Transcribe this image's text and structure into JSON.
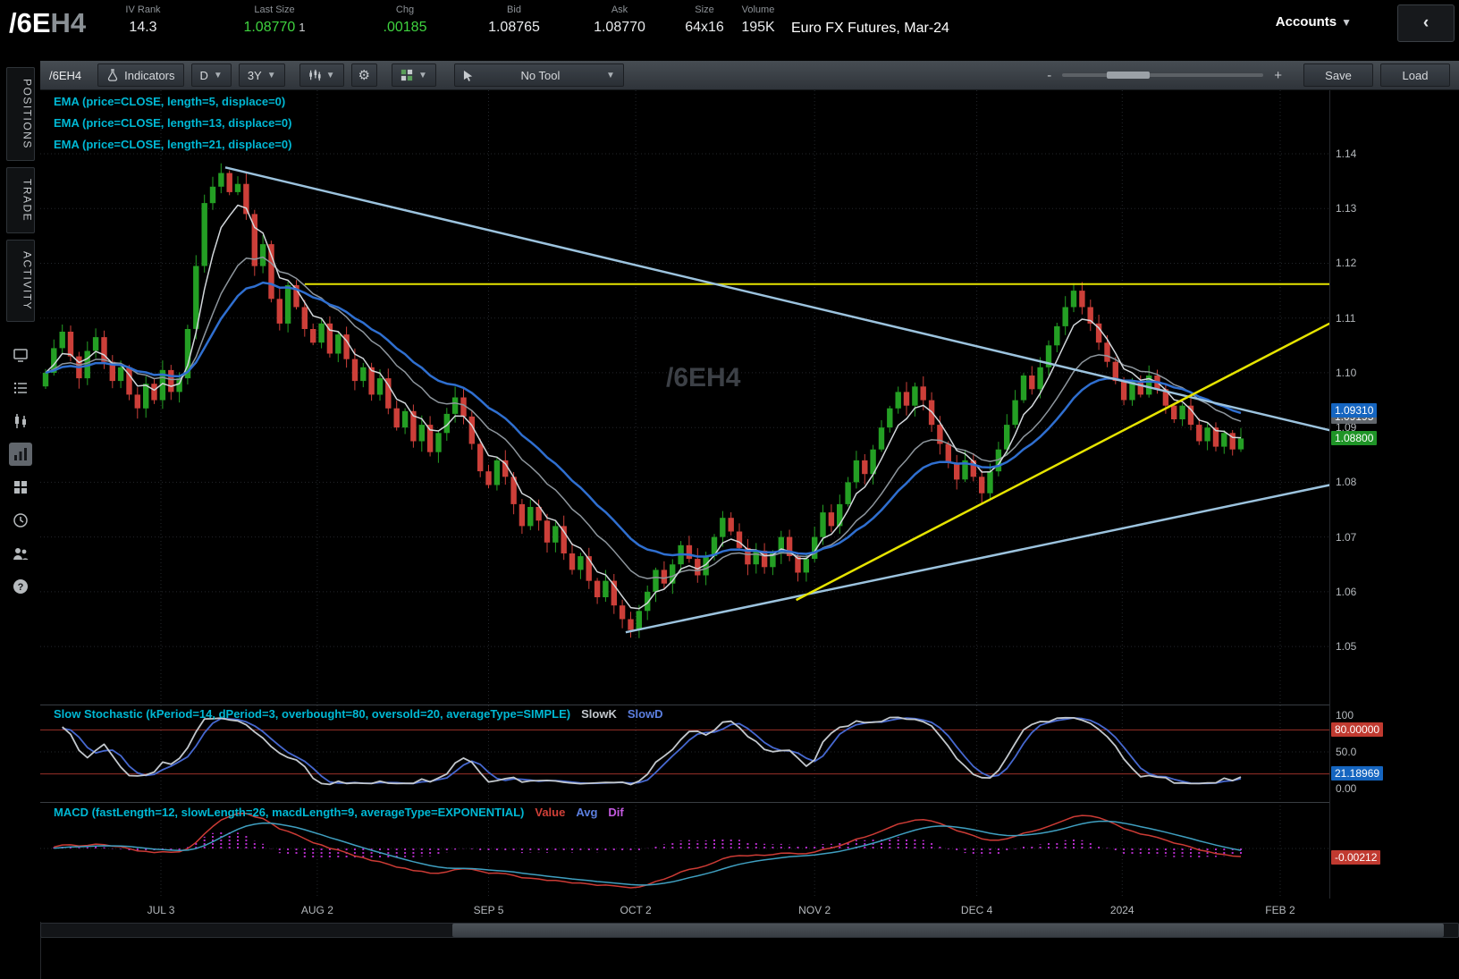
{
  "header": {
    "symbol": "/6E",
    "symbol_suffix": "H4",
    "fields": [
      {
        "label": "IV Rank",
        "value": "14.3",
        "color": "#e8eaec"
      },
      {
        "label": "Last Size",
        "value": "1.08770",
        "qty": "1",
        "color": "#3fd33f"
      },
      {
        "label": "Chg",
        "value": ".00185",
        "color": "#3fd33f"
      },
      {
        "label": "Bid",
        "value": "1.08765",
        "color": "#e8eaec"
      },
      {
        "label": "Ask",
        "value": "1.08770",
        "color": "#e8eaec"
      },
      {
        "label": "Size",
        "value": "64x16",
        "color": "#e8eaec"
      },
      {
        "label": "Volume",
        "value": "195K",
        "color": "#e8eaec"
      }
    ],
    "description": "Euro FX Futures, Mar-24",
    "accounts_label": "Accounts"
  },
  "sidebar": {
    "tabs": [
      {
        "label": "POSITIONS"
      },
      {
        "label": "TRADE"
      },
      {
        "label": "ACTIVITY"
      }
    ],
    "icons": [
      "monitor-icon",
      "watchlist-icon",
      "candles-icon",
      "chart-icon",
      "grid-icon",
      "history-icon",
      "community-icon",
      "help-icon"
    ]
  },
  "toolbar": {
    "symbol": "/6EH4",
    "indicators": "Indicators",
    "timeframe": "D",
    "range": "3Y",
    "tool": "No Tool",
    "zoom_out": "-",
    "zoom_in": "+",
    "save": "Save",
    "load": "Load"
  },
  "studies": {
    "ema_labels": [
      "EMA (price=CLOSE, length=5, displace=0)",
      "EMA (price=CLOSE, length=13, displace=0)",
      "EMA (price=CLOSE, length=21, displace=0)"
    ],
    "stoch_label": "Slow Stochastic (kPeriod=14, dPeriod=3, overbought=80, oversold=20, averageType=SIMPLE)",
    "stoch_legend": [
      {
        "text": "SlowK",
        "color": "#c3c8cd"
      },
      {
        "text": "SlowD",
        "color": "#5c7fe0"
      }
    ],
    "macd_label": "MACD (fastLength=12, slowLength=26, macdLength=9, averageType=EXPONENTIAL)",
    "macd_legend": [
      {
        "text": "Value",
        "color": "#d04038"
      },
      {
        "text": "Avg",
        "color": "#5c7fe0"
      },
      {
        "text": "Dif",
        "color": "#c45ae0"
      }
    ]
  },
  "watermark": "/6EH4",
  "axis": {
    "price_ticks": [
      "1.14",
      "1.13",
      "1.12",
      "1.11",
      "1.10",
      "1.09",
      "1.08",
      "1.07",
      "1.06",
      "1.05"
    ],
    "price_bubbles": [
      {
        "value": "1.09195",
        "bg": "#61666b"
      },
      {
        "value": "1.09310",
        "bg": "#1565c0"
      },
      {
        "value": "1.08800",
        "bg": "#1f9427"
      }
    ],
    "stoch_ticks": [
      {
        "text": "100",
        "v": 100
      },
      {
        "text": "50.0",
        "v": 50
      },
      {
        "text": "0.00",
        "v": 0
      }
    ],
    "stoch_bubbles": [
      {
        "value": "80.00000",
        "v": 80,
        "bg": "#c03a30"
      },
      {
        "value": "21.18969",
        "v": 21.18969,
        "bg": "#1565c0"
      }
    ],
    "macd_bubbles": [
      {
        "value": "-0.00212",
        "v": -0.00212,
        "bg": "#c03a30"
      }
    ]
  },
  "chart_data": {
    "type": "candlestick",
    "title": "/6EH4  Euro FX Futures, Mar-24",
    "timeframe": "D",
    "range": "3Y",
    "ylim": [
      1.0394,
      1.1516
    ],
    "price_grid": [
      1.05,
      1.06,
      1.07,
      1.08,
      1.09,
      1.1,
      1.11,
      1.12,
      1.13,
      1.14
    ],
    "x_ticks": [
      {
        "label": "JUL 3",
        "i": 13.8
      },
      {
        "label": "AUG 2",
        "i": 32.5
      },
      {
        "label": "SEP 5",
        "i": 53
      },
      {
        "label": "OCT 2",
        "i": 70.6
      },
      {
        "label": "NOV 2",
        "i": 92
      },
      {
        "label": "DEC 4",
        "i": 111.4
      },
      {
        "label": "2024",
        "i": 128.8
      },
      {
        "label": "FEB 2",
        "i": 147.7
      }
    ],
    "first_open": 1.0975,
    "closes": [
      1.1,
      1.1045,
      1.1075,
      1.103,
      1.099,
      1.104,
      1.1065,
      1.102,
      1.0985,
      1.101,
      1.096,
      1.0935,
      1.098,
      1.095,
      1.1005,
      1.0965,
      1.099,
      1.108,
      1.1195,
      1.131,
      1.134,
      1.1365,
      1.133,
      1.1345,
      1.129,
      1.1195,
      1.1235,
      1.1135,
      1.109,
      1.116,
      1.112,
      1.108,
      1.1055,
      1.109,
      1.1035,
      1.107,
      1.1025,
      1.0985,
      1.101,
      1.096,
      1.099,
      1.0935,
      1.09,
      1.093,
      1.0875,
      1.0905,
      1.0855,
      1.089,
      1.0925,
      1.0955,
      1.092,
      1.087,
      1.082,
      1.0795,
      1.084,
      1.081,
      1.076,
      1.072,
      1.0755,
      1.073,
      1.069,
      1.072,
      1.067,
      1.064,
      1.0665,
      1.062,
      1.059,
      1.062,
      1.0575,
      1.055,
      1.053,
      1.0565,
      1.06,
      1.064,
      1.0615,
      1.065,
      1.0685,
      1.066,
      1.063,
      1.0665,
      1.07,
      1.0735,
      1.071,
      1.068,
      1.065,
      1.0675,
      1.0645,
      1.067,
      1.07,
      1.0665,
      1.0635,
      1.066,
      1.07,
      1.0745,
      1.072,
      1.076,
      1.08,
      1.084,
      1.0815,
      1.086,
      1.09,
      1.0935,
      1.0965,
      1.094,
      1.0975,
      1.095,
      1.0905,
      1.087,
      1.0835,
      1.0805,
      1.084,
      1.081,
      1.078,
      1.082,
      1.086,
      1.0905,
      1.095,
      1.0995,
      1.097,
      1.101,
      1.105,
      1.1085,
      1.112,
      1.115,
      1.112,
      1.109,
      1.1055,
      1.102,
      1.0985,
      1.095,
      1.0985,
      1.096,
      1.0995,
      1.097,
      1.094,
      1.0915,
      1.094,
      1.0905,
      1.0875,
      1.09,
      1.0865,
      1.089,
      1.086,
      1.088
    ],
    "colors": {
      "up": "#249f24",
      "down": "#cc3f39",
      "ema5": "#d2d7db",
      "ema13": "#8e969d",
      "ema21": "#2f6fd0",
      "trend_blue": "#9cc3de",
      "trend_yellow": "#e6e400",
      "stoch_k": "#c3c8cd",
      "stoch_d": "#4668d0",
      "ob_os_line": "#993028",
      "macd_value": "#cc3b35",
      "macd_avg": "#3f9fc0",
      "macd_dif": "#b22cc8"
    },
    "indicators": {
      "stochastic": {
        "kPeriod": 14,
        "dPeriod": 3,
        "overbought": 80,
        "oversold": 20,
        "averageType": "SIMPLE",
        "last_slowK": 21.18969
      },
      "macd": {
        "fastLength": 12,
        "slowLength": 26,
        "macdLength": 9,
        "averageType": "EXPONENTIAL",
        "last_value": -0.00212
      },
      "ema_lengths": [
        5,
        13,
        21
      ]
    },
    "drawings": [
      {
        "name": "horizontal-resistance-line",
        "color": "#e6e400",
        "i1": 31,
        "p1": 1.1162,
        "i2": 153.6,
        "p2": 1.1162,
        "w": 2
      },
      {
        "name": "descending-trendline",
        "color": "#9cc3de",
        "i1": 21.5,
        "p1": 1.1375,
        "i2": 153.6,
        "p2": 1.0895,
        "w": 2.5
      },
      {
        "name": "ascending-trendline",
        "color": "#9cc3de",
        "i1": 69.4,
        "p1": 1.0526,
        "i2": 153.6,
        "p2": 1.0795,
        "w": 2.5
      },
      {
        "name": "ascending-yellow-trendline",
        "color": "#e6e400",
        "i1": 89.8,
        "p1": 1.0585,
        "i2": 153.6,
        "p2": 1.109,
        "w": 2.5
      }
    ]
  }
}
